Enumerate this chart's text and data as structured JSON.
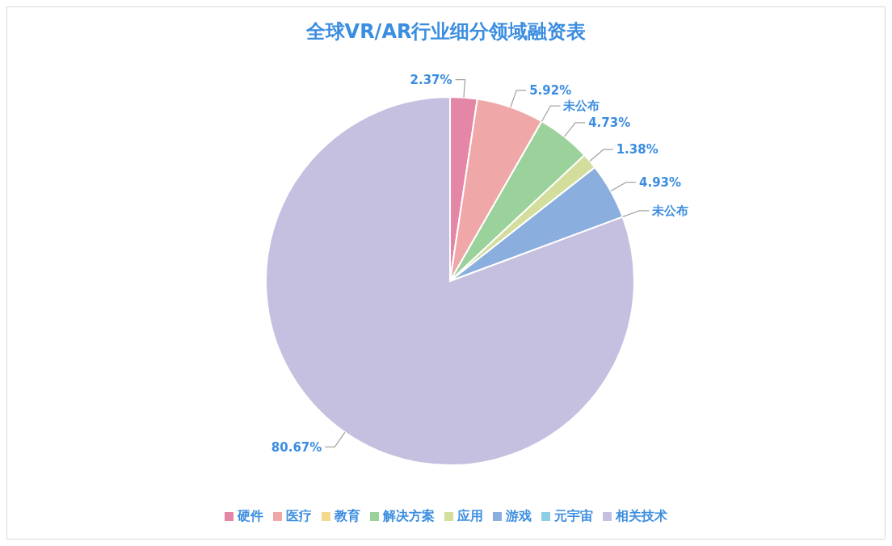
{
  "chart_data": {
    "type": "pie",
    "title": "全球VR/AR行业细分领域融资表",
    "categories": [
      "硬件",
      "医疗",
      "教育",
      "解决方案",
      "应用",
      "游戏",
      "元宇宙",
      "相关技术"
    ],
    "values": [
      2.37,
      5.92,
      0,
      4.73,
      1.38,
      4.93,
      0,
      80.67
    ],
    "colors": [
      "#e486a6",
      "#efa7a7",
      "#f5d98a",
      "#9bd19b",
      "#d3dd9c",
      "#8aaedd",
      "#8ccfe4",
      "#c5c0e0"
    ],
    "value_labels": [
      "2.37%",
      "5.92%",
      "未公布",
      "4.73%",
      "1.38%",
      "4.93%",
      "未公布",
      "80.67%"
    ],
    "legend": "bottom"
  }
}
